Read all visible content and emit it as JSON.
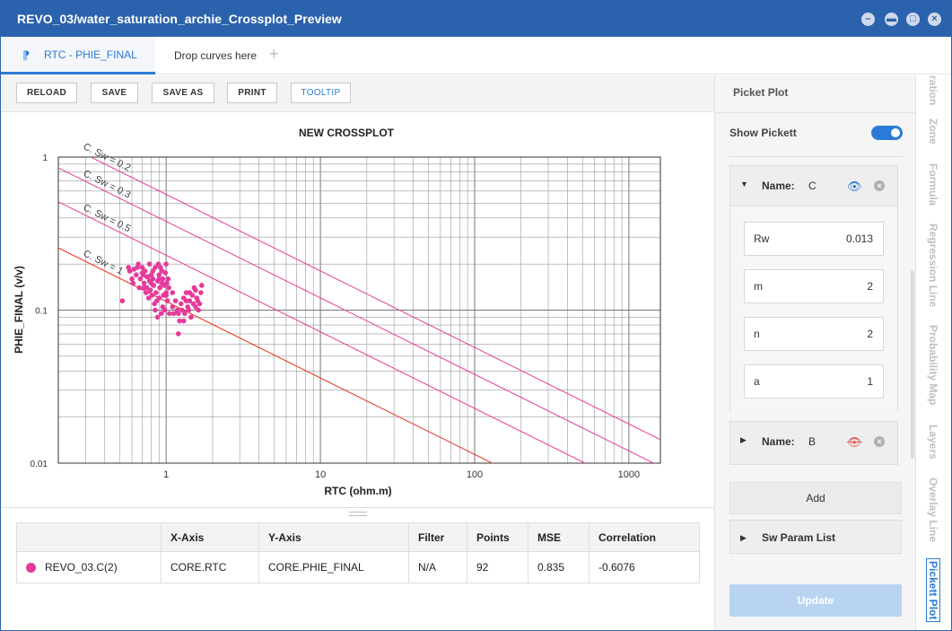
{
  "window": {
    "title": "REVO_03/water_saturation_archie_Crossplot_Preview",
    "controls": [
      "minimize",
      "restore",
      "maximize",
      "close"
    ]
  },
  "tabs": {
    "active_label": "RTC - PHIE_FINAL",
    "drop_label": "Drop curves here",
    "add_label": "+"
  },
  "toolbar": {
    "reload": "RELOAD",
    "save": "SAVE",
    "save_as": "SAVE AS",
    "print": "PRINT",
    "tooltip": "TOOLTIP"
  },
  "chart_data": {
    "type": "scatter",
    "title": "NEW CROSSPLOT",
    "xlabel": "RTC (ohm.m)",
    "ylabel": "PHIE_FINAL (v/v)",
    "xscale": "log",
    "yscale": "log",
    "xlim": [
      0.2,
      1600
    ],
    "ylim": [
      0.01,
      1
    ],
    "x_ticks": [
      "1",
      "10",
      "100",
      "1000"
    ],
    "y_ticks": [
      "1",
      "0.1",
      "0.01"
    ],
    "grid": true,
    "pickett_lines": [
      {
        "label": "C. Sw = 1",
        "sw": 1,
        "color": "#e8291c"
      },
      {
        "label": "C. Sw = 0.5",
        "sw": 0.5,
        "color": "#e63a9a"
      },
      {
        "label": "C. Sw = 0.3",
        "sw": 0.3,
        "color": "#e63a9a"
      },
      {
        "label": "C. Sw = 0.2",
        "sw": 0.2,
        "color": "#e63a9a"
      }
    ],
    "series": [
      {
        "color": "#e63a9a",
        "points": [
          [
            0.52,
            0.115
          ],
          [
            0.57,
            0.19
          ],
          [
            0.58,
            0.18
          ],
          [
            0.6,
            0.16
          ],
          [
            0.61,
            0.15
          ],
          [
            0.62,
            0.185
          ],
          [
            0.64,
            0.17
          ],
          [
            0.65,
            0.19
          ],
          [
            0.66,
            0.2
          ],
          [
            0.67,
            0.14
          ],
          [
            0.68,
            0.16
          ],
          [
            0.7,
            0.19
          ],
          [
            0.71,
            0.17
          ],
          [
            0.72,
            0.15
          ],
          [
            0.73,
            0.18
          ],
          [
            0.74,
            0.13
          ],
          [
            0.75,
            0.14
          ],
          [
            0.76,
            0.165
          ],
          [
            0.77,
            0.12
          ],
          [
            0.78,
            0.155
          ],
          [
            0.79,
            0.135
          ],
          [
            0.8,
            0.17
          ],
          [
            0.81,
            0.125
          ],
          [
            0.82,
            0.16
          ],
          [
            0.83,
            0.145
          ],
          [
            0.84,
            0.11
          ],
          [
            0.85,
            0.19
          ],
          [
            0.86,
            0.13
          ],
          [
            0.87,
            0.115
          ],
          [
            0.88,
            0.155
          ],
          [
            0.89,
            0.2
          ],
          [
            0.9,
            0.17
          ],
          [
            0.9,
            0.12
          ],
          [
            0.91,
            0.14
          ],
          [
            0.92,
            0.19
          ],
          [
            0.93,
            0.095
          ],
          [
            0.94,
            0.18
          ],
          [
            0.95,
            0.16
          ],
          [
            0.96,
            0.125
          ],
          [
            0.97,
            0.145
          ],
          [
            0.98,
            0.1
          ],
          [
            0.99,
            0.175
          ],
          [
            1.0,
            0.2
          ],
          [
            1.0,
            0.13
          ],
          [
            1.02,
            0.115
          ],
          [
            1.03,
            0.16
          ],
          [
            1.04,
            0.14
          ],
          [
            0.85,
            0.1
          ],
          [
            0.88,
            0.09
          ],
          [
            0.95,
            0.105
          ],
          [
            1.0,
            0.125
          ],
          [
            0.7,
            0.175
          ],
          [
            0.75,
            0.165
          ],
          [
            0.8,
            0.15
          ],
          [
            0.78,
            0.2
          ],
          [
            0.82,
            0.18
          ],
          [
            0.94,
            0.15
          ],
          [
            0.72,
            0.14
          ],
          [
            0.9,
            0.16
          ],
          [
            1.01,
            0.15
          ],
          [
            1.05,
            0.095
          ],
          [
            1.1,
            0.13
          ],
          [
            1.12,
            0.095
          ],
          [
            1.15,
            0.115
          ],
          [
            1.18,
            0.1
          ],
          [
            1.2,
            0.095
          ],
          [
            1.22,
            0.085
          ],
          [
            1.25,
            0.11
          ],
          [
            1.27,
            0.1
          ],
          [
            1.3,
            0.12
          ],
          [
            1.32,
            0.095
          ],
          [
            1.35,
            0.13
          ],
          [
            1.38,
            0.105
          ],
          [
            1.4,
            0.1
          ],
          [
            1.42,
            0.115
          ],
          [
            1.45,
            0.09
          ],
          [
            1.48,
            0.125
          ],
          [
            1.5,
            0.11
          ],
          [
            1.52,
            0.14
          ],
          [
            1.55,
            0.105
          ],
          [
            1.58,
            0.12
          ],
          [
            1.6,
            0.115
          ],
          [
            1.62,
            0.1
          ],
          [
            1.65,
            0.11
          ],
          [
            1.68,
            0.13
          ],
          [
            1.7,
            0.145
          ],
          [
            1.3,
            0.085
          ],
          [
            1.42,
            0.13
          ],
          [
            1.2,
            0.07
          ],
          [
            1.55,
            0.135
          ],
          [
            1.35,
            0.115
          ],
          [
            1.1,
            0.105
          ]
        ]
      }
    ]
  },
  "stats_table": {
    "headers": [
      "",
      "X-Axis",
      "Y-Axis",
      "Filter",
      "Points",
      "MSE",
      "Correlation"
    ],
    "row": {
      "name": "REVO_03.C(2)",
      "color": "#e63a9a",
      "x_axis": "CORE.RTC",
      "y_axis": "CORE.PHIE_FINAL",
      "filter": "N/A",
      "points": "92",
      "mse": "0.835",
      "correlation": "-0.6076"
    }
  },
  "pickett_panel": {
    "title": "Picket Plot",
    "show_label": "Show Pickett",
    "show_enabled": true,
    "name_label": "Name:",
    "groups": [
      {
        "name": "C",
        "visible": true,
        "expanded": true,
        "params": [
          {
            "label": "Rw",
            "value": "0.013"
          },
          {
            "label": "m",
            "value": "2"
          },
          {
            "label": "n",
            "value": "2"
          },
          {
            "label": "a",
            "value": "1"
          }
        ]
      },
      {
        "name": "B",
        "visible": false,
        "expanded": false
      }
    ],
    "add_label": "Add",
    "sw_param_list_label": "Sw Param List",
    "update_label": "Update"
  },
  "side_tabs": [
    "ration",
    "Zone",
    "Formula",
    "Regression Line",
    "Probability Map",
    "Layers",
    "Overlay Line",
    "Pickett Plot"
  ],
  "active_side_tab": "Pickett Plot"
}
